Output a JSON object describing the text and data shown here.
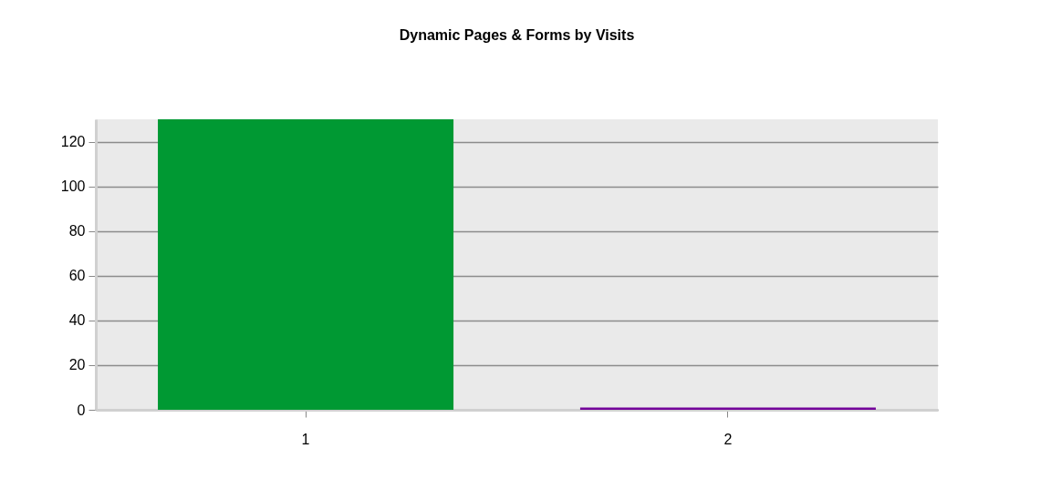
{
  "chart_data": {
    "type": "bar",
    "title": "Dynamic Pages & Forms by Visits",
    "categories": [
      "1",
      "2"
    ],
    "values": [
      130,
      1
    ],
    "colors": [
      "#009933",
      "#730099"
    ],
    "ylim": [
      0,
      130
    ],
    "yticks": [
      0,
      20,
      40,
      60,
      80,
      100,
      120
    ],
    "grid": "y"
  }
}
